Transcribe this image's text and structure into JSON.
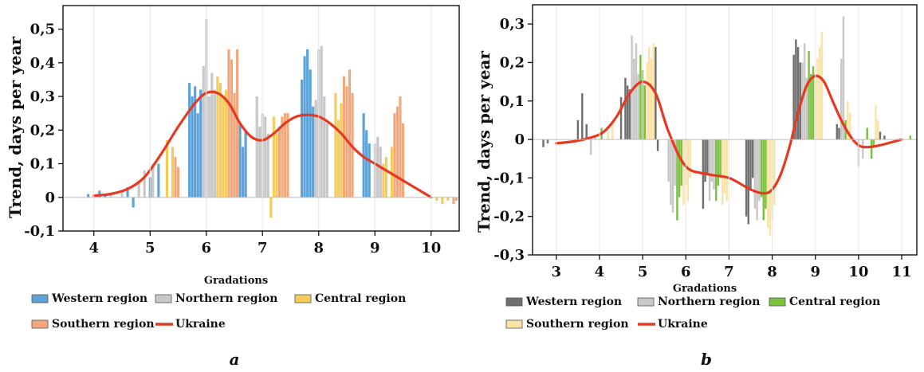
{
  "series_styles": [
    {
      "name": "Western region",
      "color": "#5ba3d9"
    },
    {
      "name": "Northern region",
      "color": "#c8c8c8"
    },
    {
      "name": "Central region",
      "color": "#f5cc5a"
    },
    {
      "name": "Southern region",
      "color": "#f2a87a"
    },
    {
      "name": "Ukraine",
      "color": "#e53922"
    }
  ],
  "chart_data": [
    {
      "type": "bar",
      "panel_label": "a",
      "xlabel": "Gradations",
      "ylabel": "Trend, days per year",
      "xlim": [
        3.45,
        10.5
      ],
      "ylim": [
        -0.1,
        0.57
      ],
      "xticks": [
        "4",
        "5",
        "6",
        "7",
        "8",
        "9",
        "10"
      ],
      "yticks": [
        "-0,1",
        "0",
        "0,1",
        "0,2",
        "0,3",
        "0,4",
        "0,5"
      ],
      "grid": "vertical",
      "legend": "bottom",
      "series": [
        {
          "name": "Western region",
          "color": "#5ba3d9",
          "x": [
            3.9,
            4.1,
            4.2,
            4.6,
            4.7,
            5.0,
            5.15,
            5.7,
            5.75,
            5.8,
            5.85,
            5.9,
            6.5,
            6.55,
            6.6,
            6.65,
            6.7,
            7.7,
            7.75,
            7.8,
            7.85,
            7.9,
            8.8,
            8.85,
            8.9
          ],
          "values": [
            0.01,
            0.02,
            0.01,
            0.03,
            -0.03,
            0.06,
            0.1,
            0.34,
            0.3,
            0.33,
            0.25,
            0.32,
            0.27,
            0.18,
            0.22,
            0.15,
            0.2,
            0.35,
            0.42,
            0.44,
            0.38,
            0.27,
            0.25,
            0.2,
            0.16
          ]
        },
        {
          "name": "Northern region",
          "color": "#c8c8c8",
          "x": [
            4.3,
            4.5,
            4.8,
            4.9,
            5.05,
            5.95,
            6.0,
            6.05,
            6.1,
            6.15,
            6.9,
            6.95,
            7.0,
            7.05,
            7.1,
            7.95,
            8.0,
            8.05,
            8.1,
            8.15,
            9.0,
            9.05,
            9.1
          ],
          "values": [
            0.01,
            0.02,
            0.05,
            0.08,
            0.1,
            0.39,
            0.53,
            0.3,
            0.37,
            0.32,
            0.3,
            0.21,
            0.25,
            0.24,
            0.19,
            0.29,
            0.44,
            0.45,
            0.3,
            0.22,
            0.16,
            0.18,
            0.15
          ]
        },
        {
          "name": "Central region",
          "color": "#f5cc5a",
          "x": [
            5.3,
            5.4,
            6.2,
            6.25,
            6.3,
            6.35,
            7.15,
            7.2,
            7.25,
            8.3,
            8.35,
            8.4,
            9.15,
            9.2,
            9.3,
            10.1,
            10.2,
            10.3
          ],
          "values": [
            0.17,
            0.15,
            0.36,
            0.34,
            0.3,
            0.32,
            -0.06,
            0.24,
            0.19,
            0.31,
            0.23,
            0.28,
            0.1,
            0.12,
            0.15,
            -0.01,
            -0.02,
            -0.01
          ]
        },
        {
          "name": "Southern region",
          "color": "#f2a87a",
          "x": [
            5.45,
            5.5,
            6.4,
            6.45,
            6.5,
            6.55,
            7.3,
            7.35,
            7.4,
            7.45,
            8.45,
            8.5,
            8.55,
            8.6,
            9.35,
            9.4,
            9.45,
            9.5,
            10.4,
            10.45
          ],
          "values": [
            0.12,
            0.09,
            0.44,
            0.41,
            0.31,
            0.44,
            0.21,
            0.24,
            0.25,
            0.25,
            0.36,
            0.33,
            0.38,
            0.31,
            0.25,
            0.27,
            0.3,
            0.22,
            -0.02,
            -0.01
          ]
        }
      ],
      "line": {
        "name": "Ukraine",
        "color": "#e53922",
        "x": [
          4.0,
          4.3,
          4.6,
          4.9,
          5.2,
          5.5,
          5.8,
          6.0,
          6.2,
          6.4,
          6.6,
          6.8,
          7.0,
          7.2,
          7.4,
          7.6,
          7.8,
          8.0,
          8.2,
          8.4,
          8.6,
          8.8,
          9.0,
          9.2,
          9.5,
          9.8,
          10.0
        ],
        "values": [
          0.005,
          0.01,
          0.025,
          0.06,
          0.13,
          0.21,
          0.28,
          0.31,
          0.31,
          0.28,
          0.22,
          0.18,
          0.17,
          0.19,
          0.22,
          0.24,
          0.245,
          0.24,
          0.22,
          0.19,
          0.15,
          0.12,
          0.1,
          0.08,
          0.05,
          0.02,
          0.0
        ]
      }
    },
    {
      "type": "bar",
      "panel_label": "b",
      "xlabel": "Gradations",
      "ylabel": "Trend, days  per year",
      "xlim": [
        2.45,
        11.35
      ],
      "ylim": [
        -0.3,
        0.35
      ],
      "xticks": [
        "3",
        "4",
        "5",
        "6",
        "7",
        "8",
        "9",
        "10",
        "11"
      ],
      "yticks": [
        "-0,3",
        "-0,2",
        "-0,1",
        "0",
        "0,1",
        "0,2",
        "0,3"
      ],
      "grid": "vertical",
      "legend": "bottom",
      "series": [
        {
          "name": "Western region",
          "color": "#6f6f6f",
          "x": [
            2.7,
            2.8,
            3.5,
            3.6,
            3.7,
            4.5,
            4.6,
            4.65,
            4.7,
            5.3,
            5.35,
            6.4,
            6.45,
            6.5,
            7.4,
            7.45,
            7.5,
            7.55,
            8.5,
            8.55,
            8.6,
            8.65,
            9.5,
            9.55,
            10.5,
            10.6
          ],
          "values": [
            -0.02,
            -0.01,
            0.05,
            0.12,
            0.04,
            0.11,
            0.16,
            0.14,
            0.13,
            0.24,
            -0.03,
            -0.18,
            -0.11,
            -0.09,
            -0.2,
            -0.22,
            -0.13,
            -0.1,
            0.22,
            0.26,
            0.24,
            0.2,
            0.04,
            0.03,
            0.02,
            0.01
          ]
        },
        {
          "name": "Northern region",
          "color": "#c8c8c8",
          "x": [
            3.8,
            3.9,
            4.75,
            4.8,
            4.85,
            4.9,
            5.6,
            5.65,
            5.7,
            5.75,
            6.55,
            6.6,
            6.65,
            7.6,
            7.65,
            7.7,
            8.7,
            8.75,
            8.8,
            9.6,
            9.65,
            10.0,
            10.1
          ],
          "values": [
            -0.04,
            0.01,
            0.27,
            0.21,
            0.25,
            0.17,
            -0.11,
            -0.17,
            -0.19,
            -0.12,
            -0.16,
            -0.11,
            -0.13,
            -0.18,
            -0.21,
            -0.16,
            0.2,
            0.25,
            0.16,
            0.21,
            0.32,
            -0.07,
            -0.05
          ]
        },
        {
          "name": "Central region",
          "color": "#7cc040",
          "x": [
            4.05,
            4.95,
            5.0,
            5.05,
            5.8,
            5.85,
            5.9,
            6.7,
            6.75,
            6.8,
            7.75,
            7.8,
            7.85,
            8.85,
            8.9,
            8.95,
            9.7,
            10.2,
            10.3,
            10.35,
            11.2
          ],
          "values": [
            0.03,
            0.22,
            0.18,
            0.14,
            -0.21,
            -0.15,
            -0.12,
            -0.16,
            -0.12,
            -0.1,
            -0.15,
            -0.21,
            -0.18,
            0.23,
            0.17,
            0.19,
            0.05,
            0.03,
            -0.05,
            -0.02,
            0.01
          ]
        },
        {
          "name": "Southern region",
          "color": "#fbe3a5",
          "x": [
            4.2,
            4.3,
            5.1,
            5.15,
            5.2,
            5.25,
            5.95,
            6.0,
            6.05,
            6.1,
            6.85,
            6.9,
            6.95,
            7.9,
            7.95,
            8.0,
            8.05,
            9.0,
            9.05,
            9.1,
            9.15,
            9.75,
            9.8,
            10.4,
            10.45
          ],
          "values": [
            0.02,
            0.04,
            0.2,
            0.24,
            0.21,
            0.25,
            -0.17,
            -0.12,
            -0.16,
            -0.1,
            -0.17,
            -0.14,
            -0.16,
            -0.23,
            -0.25,
            -0.21,
            -0.17,
            0.17,
            0.21,
            0.24,
            0.28,
            0.1,
            0.07,
            0.09,
            0.05
          ]
        }
      ],
      "line": {
        "name": "Ukraine",
        "color": "#e53922",
        "x": [
          3.0,
          3.4,
          3.8,
          4.1,
          4.4,
          4.7,
          5.0,
          5.3,
          5.6,
          6.0,
          6.5,
          7.0,
          7.5,
          7.8,
          8.0,
          8.2,
          8.4,
          8.6,
          8.8,
          9.0,
          9.2,
          9.4,
          9.6,
          9.8,
          10.0,
          10.2,
          10.5,
          11.0
        ],
        "values": [
          -0.01,
          -0.005,
          0.005,
          0.02,
          0.06,
          0.12,
          0.15,
          0.12,
          0.02,
          -0.07,
          -0.09,
          -0.1,
          -0.13,
          -0.14,
          -0.13,
          -0.09,
          -0.02,
          0.07,
          0.14,
          0.165,
          0.15,
          0.1,
          0.05,
          0.01,
          -0.015,
          -0.02,
          -0.015,
          0.0
        ]
      }
    }
  ],
  "legends": [
    [
      {
        "name": "Western region",
        "color": "#5ba3d9",
        "kind": "box"
      },
      {
        "name": "Northern region",
        "color": "#c8c8c8",
        "kind": "box"
      },
      {
        "name": "Central region",
        "color": "#f5cc5a",
        "kind": "box"
      },
      {
        "name": "Southern region",
        "color": "#f2a87a",
        "kind": "box"
      },
      {
        "name": "Ukraine",
        "color": "#e53922",
        "kind": "line"
      }
    ],
    [
      {
        "name": "Western region",
        "color": "#6f6f6f",
        "kind": "box"
      },
      {
        "name": "Northern region",
        "color": "#c8c8c8",
        "kind": "box"
      },
      {
        "name": "Central region",
        "color": "#7cc040",
        "kind": "box"
      },
      {
        "name": "Southern region",
        "color": "#fbe3a5",
        "kind": "box"
      },
      {
        "name": "Ukraine",
        "color": "#e53922",
        "kind": "line"
      }
    ]
  ]
}
